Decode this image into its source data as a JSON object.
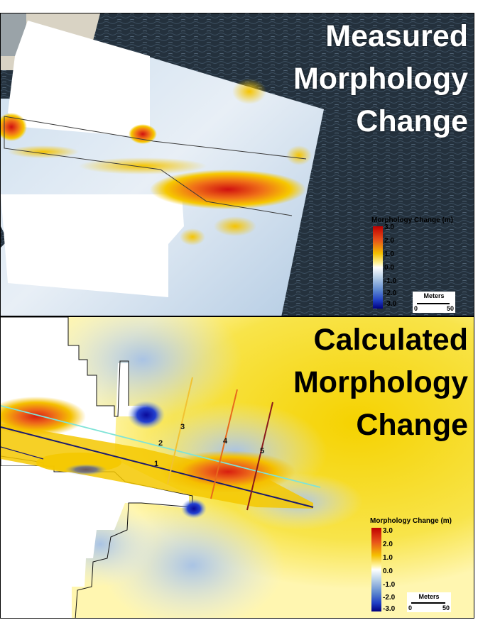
{
  "top_panel": {
    "title_lines": [
      "Measured",
      "Morphology",
      "Change"
    ]
  },
  "bottom_panel": {
    "title_lines": [
      "Calculated",
      "Morphology",
      "Change"
    ],
    "transect_labels": [
      "1",
      "2",
      "3",
      "4",
      "5"
    ]
  },
  "legend": {
    "title": "Morphology Change (m)",
    "ticks": [
      "3.0",
      "2.0",
      "1.0",
      "0.0",
      "-1.0",
      "-2.0",
      "-3.0"
    ],
    "colors": [
      "#c00000",
      "#e8541a",
      "#f5a623",
      "#f5e000",
      "#ffffff",
      "#b8d0e8",
      "#5b86cf",
      "#1f3fc4",
      "#000080"
    ]
  },
  "scale_bar": {
    "label": "Meters",
    "start": "0",
    "end": "50"
  },
  "colors": {
    "ocean": "#24313d",
    "sand": "#e9e4d8",
    "change_pos": "#f3b400",
    "change_neg": "#1b35c8",
    "transect_cyan": "#7fe3d7",
    "transect_navy": "#1a1a6e"
  }
}
